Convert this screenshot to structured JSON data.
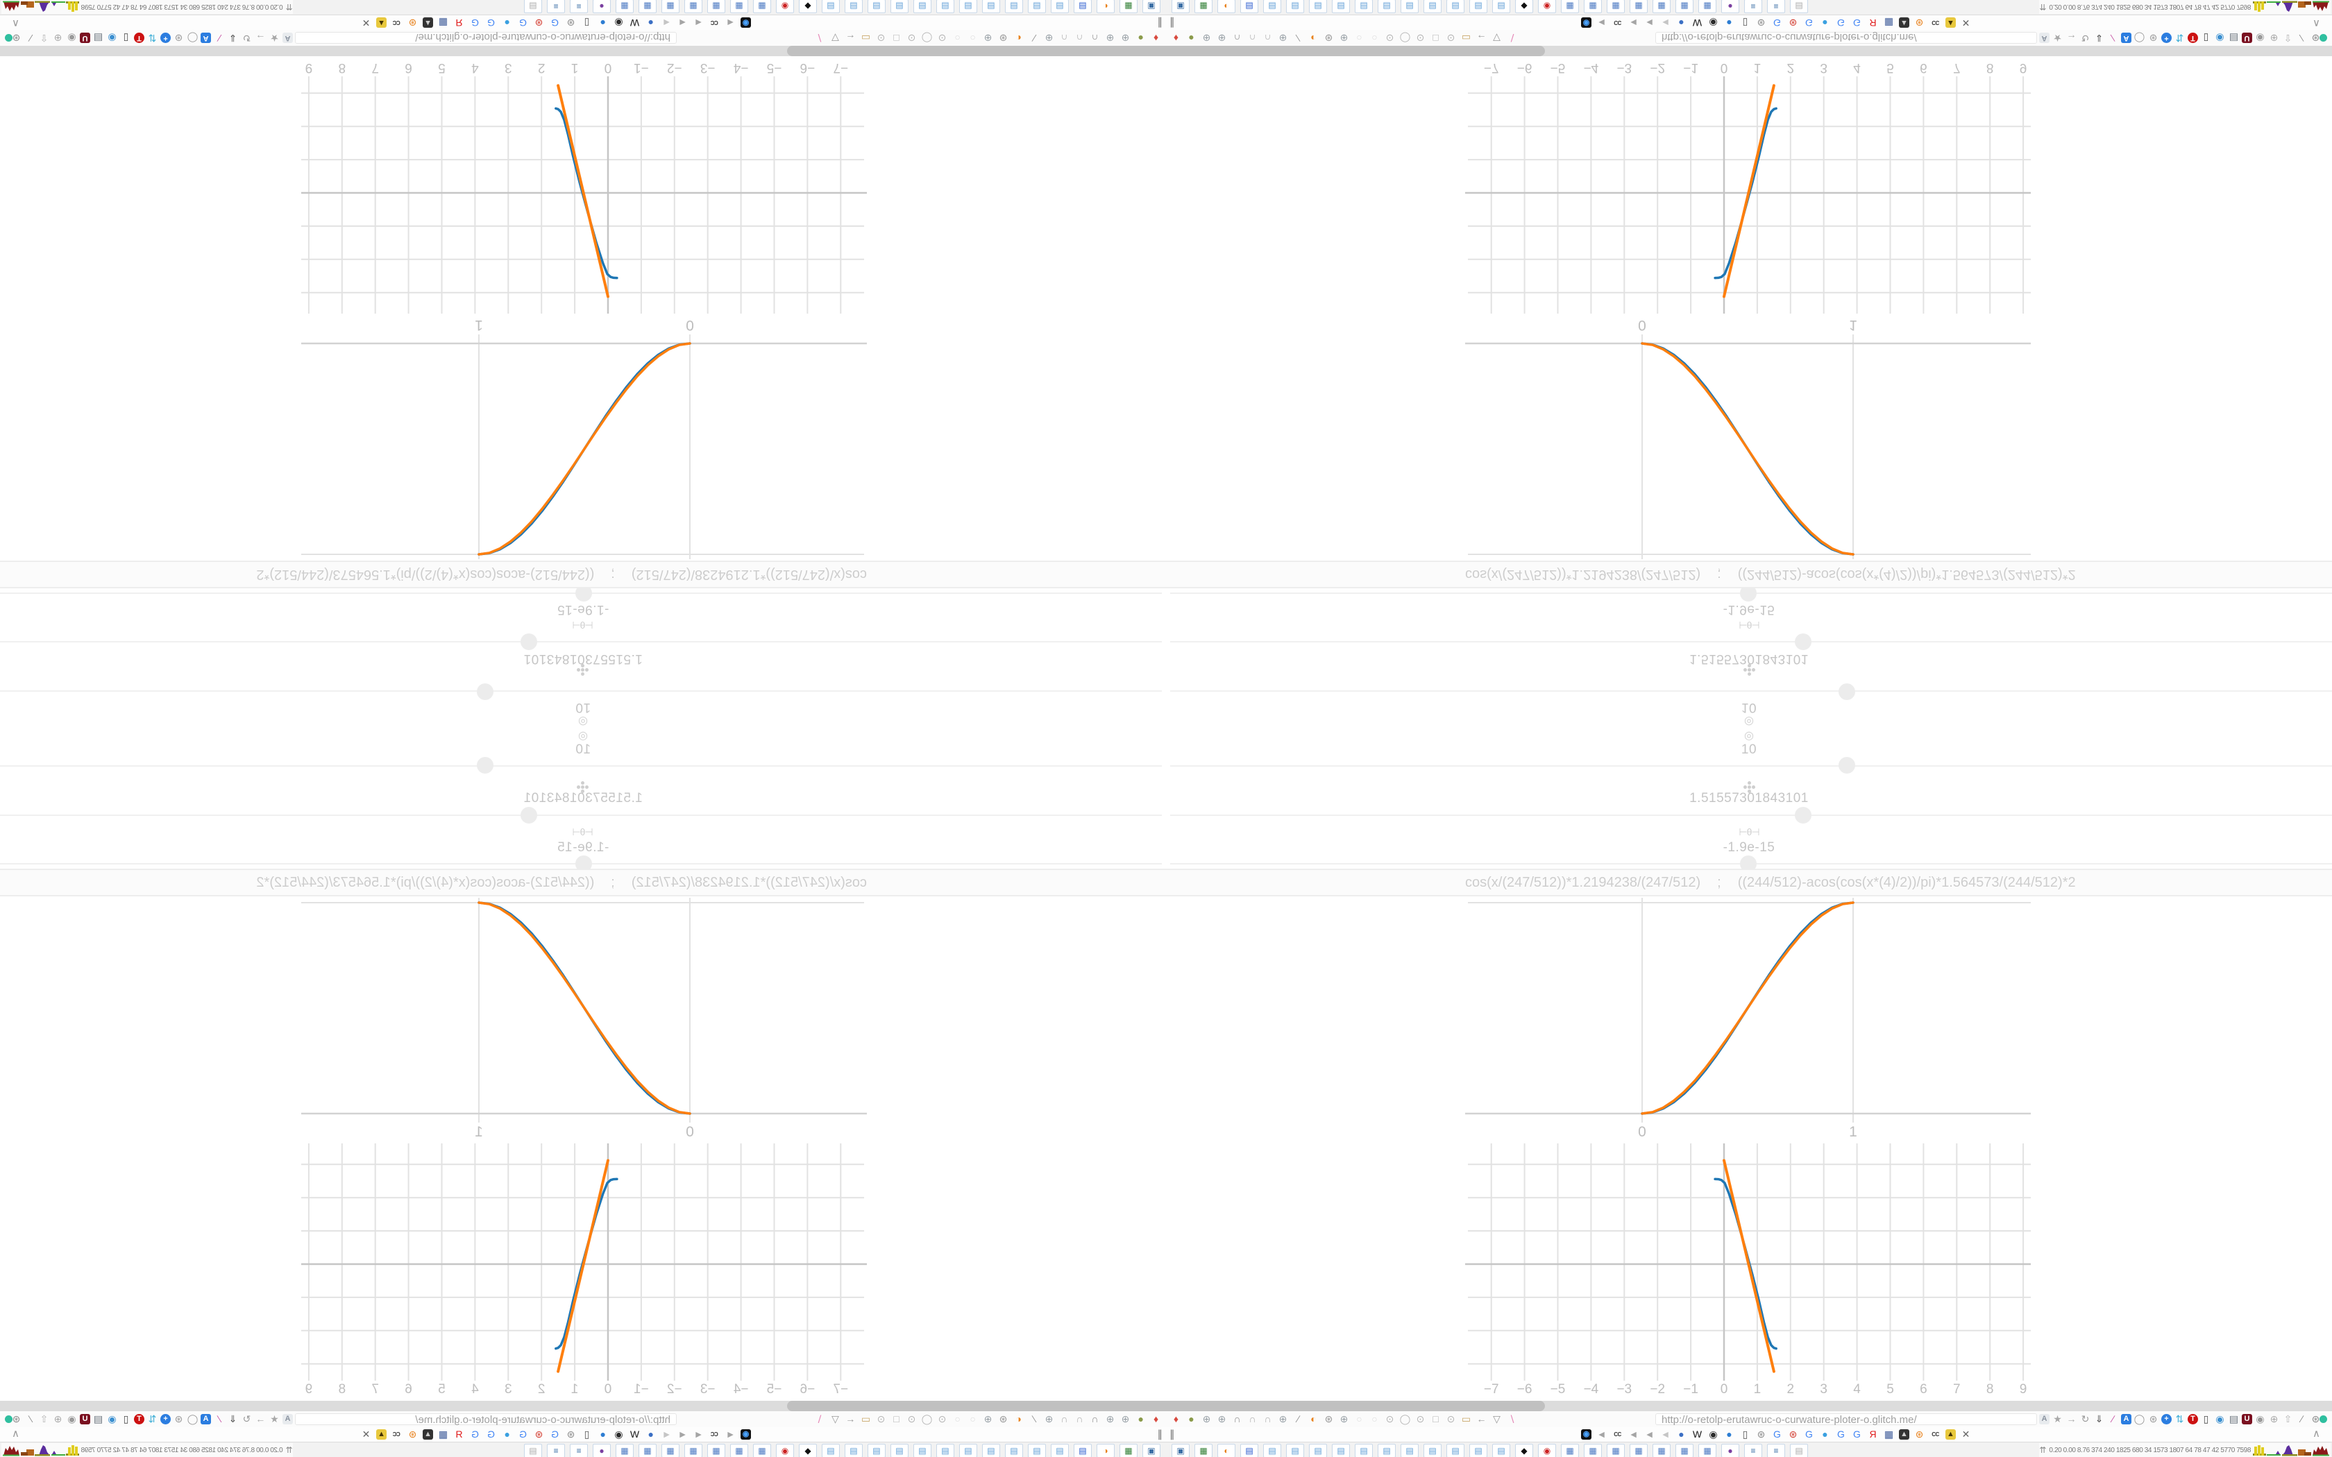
{
  "browser": {
    "url": "http://o-retolp-erutawruc-o-curwature-ploter-o.glitch.me/",
    "pause_glyph": "∥",
    "collapse_glyph": "∧",
    "status_dot_color": "#2fbf9f",
    "nav_icons": [
      {
        "name": "map-pin-icon",
        "glyph": "♦",
        "color": "#d84a3f"
      },
      {
        "name": "olive-circle-icon",
        "glyph": "●",
        "color": "#8a9a4a"
      },
      {
        "name": "globe-icon",
        "glyph": "⊕",
        "color": "#9aa2a8"
      },
      {
        "name": "globe-icon",
        "glyph": "⊕",
        "color": "#9aa2a8"
      },
      {
        "name": "headset-icon",
        "glyph": "∩",
        "color": "#8f8f8f"
      },
      {
        "name": "arc-icon",
        "glyph": "∩",
        "color": "#b0b0b0"
      },
      {
        "name": "arc-icon",
        "glyph": "∩",
        "color": "#b0b0b0"
      },
      {
        "name": "globe-icon",
        "glyph": "⊕",
        "color": "#9aa2a8"
      },
      {
        "name": "wrench-icon",
        "glyph": "∕",
        "color": "#8f8f8f"
      },
      {
        "name": "firefox-icon",
        "glyph": "◐",
        "color": "#e8821e"
      },
      {
        "name": "gear-icon",
        "glyph": "⊛",
        "color": "#979797"
      },
      {
        "name": "globe-icon",
        "glyph": "⊕",
        "color": "#9aa2a8"
      },
      {
        "name": "dot-icon",
        "glyph": "○",
        "color": "#dcdcdc"
      },
      {
        "name": "dot-icon",
        "glyph": "○",
        "color": "#dcdcdc"
      },
      {
        "name": "record-icon",
        "glyph": "⊙",
        "color": "#b5b5b5"
      },
      {
        "name": "circle-icon",
        "glyph": "◯",
        "color": "#b5b5b5"
      },
      {
        "name": "record-icon",
        "glyph": "⊙",
        "color": "#b5b5b5"
      },
      {
        "name": "square-icon",
        "glyph": "□",
        "color": "#b5b5b5"
      },
      {
        "name": "record-icon",
        "glyph": "⊙",
        "color": "#b5b5b5"
      },
      {
        "name": "folder-icon",
        "glyph": "▭",
        "color": "#c9a86a"
      },
      {
        "name": "back-arrow-icon",
        "glyph": "←",
        "color": "#9a9a9a"
      },
      {
        "name": "shield-icon",
        "glyph": "▽",
        "color": "#9a9a9a"
      },
      {
        "name": "edit-disabled-icon",
        "glyph": "∖",
        "color": "#e585b5"
      }
    ],
    "extension_icons": [
      {
        "name": "translate-box-icon",
        "glyph": "A",
        "color": "#8a93a0",
        "box": "#e8ebee"
      },
      {
        "name": "star-icon",
        "glyph": "★",
        "color": "#a8a8a8"
      },
      {
        "name": "forward-arrow-icon",
        "glyph": "→",
        "color": "#a8a8a8"
      },
      {
        "name": "reload-icon",
        "glyph": "↻",
        "color": "#9a9a9a"
      },
      {
        "name": "download-icon",
        "glyph": "⇓",
        "color": "#555555"
      },
      {
        "name": "marker-icon",
        "glyph": "∕",
        "color": "#c44fa0"
      },
      {
        "name": "translate-blue-icon",
        "glyph": "A",
        "color": "#ffffff",
        "box": "#2b7de0"
      },
      {
        "name": "mouse-icon",
        "glyph": "◯",
        "color": "#9a9a9a"
      },
      {
        "name": "gear-flower-icon",
        "glyph": "⊛",
        "color": "#9a9a9a"
      },
      {
        "name": "add-icon",
        "glyph": "+",
        "color": "#ffffff",
        "box": "#2b7de0",
        "round": true
      },
      {
        "name": "sync-icon",
        "glyph": "⇅",
        "color": "#45b1d8"
      },
      {
        "name": "tcp-icon",
        "glyph": "T",
        "color": "#ffffff",
        "box": "#cc1111",
        "round": true
      },
      {
        "name": "trash-icon",
        "glyph": "▯",
        "color": "#4a4a4a"
      },
      {
        "name": "globe-color-icon",
        "glyph": "◉",
        "color": "#3a8fd0"
      },
      {
        "name": "bars-box-icon",
        "glyph": "▤",
        "color": "#66707a"
      },
      {
        "name": "ud-shield-icon",
        "glyph": "U",
        "color": "#ffffff",
        "box": "#7a1020"
      },
      {
        "name": "swirl-shield-icon",
        "glyph": "◉",
        "color": "#9a9a9a"
      },
      {
        "name": "globe-grid-icon",
        "glyph": "⊕",
        "color": "#ababab"
      },
      {
        "name": "thumb-icon",
        "glyph": "⇧",
        "color": "#b5b5b5"
      },
      {
        "name": "wrench-icon",
        "glyph": "∕",
        "color": "#8a8a8a"
      },
      {
        "name": "gear-icon",
        "glyph": "⊛",
        "color": "#8a8a8a"
      }
    ],
    "favicons": [
      {
        "name": "vinyl-icon",
        "glyph": "◉",
        "color": "#4aa3ff",
        "box": "#111111"
      },
      {
        "name": "mute-icon",
        "glyph": "◄",
        "color": "#a5a5a5"
      },
      {
        "name": "cc-icon",
        "glyph": "CC",
        "color": "#333333",
        "small": true
      },
      {
        "name": "mute-icon",
        "glyph": "◄",
        "color": "#a5a5a5"
      },
      {
        "name": "mute-icon",
        "glyph": "◄",
        "color": "#a5a5a5"
      },
      {
        "name": "mute-icon",
        "glyph": "◄",
        "color": "#c5c5c5"
      },
      {
        "name": "ball-icon",
        "glyph": "●",
        "color": "#3b6fc4"
      },
      {
        "name": "wikipedia-icon",
        "glyph": "W",
        "color": "#1a1a1a"
      },
      {
        "name": "radar-icon",
        "glyph": "◉",
        "color": "#2a2a2a"
      },
      {
        "name": "blue-globe-icon",
        "glyph": "●",
        "color": "#2d7dd2"
      },
      {
        "name": "trash-icon",
        "glyph": "▯",
        "color": "#555555"
      },
      {
        "name": "gear-icon",
        "glyph": "⊛",
        "color": "#8a8a8a"
      },
      {
        "name": "google-icon",
        "glyph": "G",
        "color": "#4285f4"
      },
      {
        "name": "red-gear-icon",
        "glyph": "⊛",
        "color": "#d23b2f"
      },
      {
        "name": "google-icon",
        "glyph": "G",
        "color": "#4285f4"
      },
      {
        "name": "drop-icon",
        "glyph": "●",
        "color": "#3aa0e0"
      },
      {
        "name": "google-icon",
        "glyph": "G",
        "color": "#4285f4"
      },
      {
        "name": "google-icon",
        "glyph": "G",
        "color": "#4285f4"
      },
      {
        "name": "yandex-icon",
        "glyph": "Я",
        "color": "#e01b1b"
      },
      {
        "name": "grid-icon",
        "glyph": "▦",
        "color": "#3b5998"
      },
      {
        "name": "photo-icon",
        "glyph": "▲",
        "color": "#cccccc",
        "box": "#333333"
      },
      {
        "name": "sun-gear-icon",
        "glyph": "⊛",
        "color": "#e8821e"
      },
      {
        "name": "cc-icon",
        "glyph": "CC",
        "color": "#333333",
        "small": true
      },
      {
        "name": "photo-icon",
        "glyph": "▲",
        "color": "#443300",
        "box": "#e8c83d"
      },
      {
        "name": "hourglass-icon",
        "glyph": "✕",
        "color": "#666666"
      }
    ],
    "taskbar_buttons": [
      {
        "name": "pc-photo-window",
        "glyph": "▣",
        "color": "#3a6ea5"
      },
      {
        "name": "green-app-window",
        "glyph": "▦",
        "color": "#2e7d32"
      },
      {
        "name": "firefox-window",
        "glyph": "◐",
        "color": "#e8821e"
      },
      {
        "name": "floppy-window",
        "glyph": "▤",
        "color": "#2255cc"
      },
      {
        "name": "notepad-window",
        "glyph": "▤",
        "color": "#5b9bd5"
      },
      {
        "name": "notepad-window",
        "glyph": "▤",
        "color": "#5b9bd5"
      },
      {
        "name": "notepad-window",
        "glyph": "▤",
        "color": "#5b9bd5"
      },
      {
        "name": "notepad-window",
        "glyph": "▤",
        "color": "#5b9bd5"
      },
      {
        "name": "notepad-window",
        "glyph": "▤",
        "color": "#5b9bd5"
      },
      {
        "name": "notepad-window",
        "glyph": "▤",
        "color": "#5b9bd5"
      },
      {
        "name": "notepad-window",
        "glyph": "▤",
        "color": "#5b9bd5"
      },
      {
        "name": "notepad-window",
        "glyph": "▤",
        "color": "#5b9bd5"
      },
      {
        "name": "notepad-window",
        "glyph": "▤",
        "color": "#5b9bd5"
      },
      {
        "name": "notepad-window",
        "glyph": "▤",
        "color": "#5b9bd5"
      },
      {
        "name": "notepad-window",
        "glyph": "▤",
        "color": "#5b9bd5"
      },
      {
        "name": "cat-window",
        "glyph": "◆",
        "color": "#111111"
      },
      {
        "name": "dial-window",
        "glyph": "◉",
        "color": "#cc2222"
      },
      {
        "name": "calculator-window",
        "glyph": "▦",
        "color": "#4a78c2"
      },
      {
        "name": "calculator-window",
        "glyph": "▦",
        "color": "#4a78c2"
      },
      {
        "name": "calculator-window",
        "glyph": "▦",
        "color": "#4a78c2"
      },
      {
        "name": "calculator-window",
        "glyph": "▦",
        "color": "#4a78c2"
      },
      {
        "name": "calculator-window",
        "glyph": "▦",
        "color": "#4a78c2"
      },
      {
        "name": "calculator-window",
        "glyph": "▦",
        "color": "#4a78c2"
      },
      {
        "name": "calculator-window",
        "glyph": "▦",
        "color": "#4a78c2"
      },
      {
        "name": "monkey-window",
        "glyph": "●",
        "color": "#7a3fa0"
      },
      {
        "name": "scroll-window",
        "glyph": "≡",
        "color": "#3a6ea5"
      },
      {
        "name": "scroll-window",
        "glyph": "≡",
        "color": "#3a6ea5"
      },
      {
        "name": "printer-window",
        "glyph": "▤",
        "color": "#aaaaaa"
      }
    ],
    "monitor": {
      "expand_glyph": "⇈",
      "values": "0.20 0.00 8.76 374 240 1825 680 34 1573 1807 64 78 47 42 5770 7598"
    }
  },
  "page": {
    "stack": {
      "rows": [
        {
          "icon": "target-icon",
          "glyph": "◎",
          "value": "10",
          "thumb_x": 981,
          "thumb_y": 53
        },
        {
          "icon": "clover-icon",
          "glyph": "",
          "value": "1.51557301843101",
          "thumb_x": 918,
          "thumb_y": 125
        },
        {
          "icon": "theta-node-icon",
          "glyph": "⊢θ⊣",
          "value": "-1.9e-15",
          "thumb_x": 839,
          "thumb_y": 195
        }
      ]
    },
    "expressions": {
      "left": "cos(x/(247/512))*1.2194238/(247/512)",
      "separator": ";",
      "right": "((244/512)-acos(cos(x*(4)/2))/pi)*1.564573/(244/512)*2"
    }
  },
  "chart_data": [
    {
      "id": "sigmoid-plot",
      "type": "line",
      "title": "",
      "xlabel": "",
      "ylabel": "",
      "xlim": [
        -0.84,
        1.84
      ],
      "ylim": [
        -0.13,
        1.02
      ],
      "grid_x": [
        0,
        1
      ],
      "grid_y": [
        1
      ],
      "zero_y": 0,
      "x_ticks": [
        {
          "v": 0,
          "label": "0"
        },
        {
          "v": 1,
          "label": "1"
        }
      ],
      "legend": "none",
      "series": [
        {
          "name": "exact-curve",
          "color": "#1f77b4",
          "width": 3.5,
          "points": [
            [
              0,
              0
            ],
            [
              0.05,
              0.006
            ],
            [
              0.1,
              0.024
            ],
            [
              0.15,
              0.054
            ],
            [
              0.2,
              0.095
            ],
            [
              0.25,
              0.146
            ],
            [
              0.3,
              0.206
            ],
            [
              0.35,
              0.273
            ],
            [
              0.4,
              0.345
            ],
            [
              0.45,
              0.422
            ],
            [
              0.5,
              0.5
            ],
            [
              0.55,
              0.578
            ],
            [
              0.6,
              0.655
            ],
            [
              0.65,
              0.727
            ],
            [
              0.7,
              0.794
            ],
            [
              0.75,
              0.854
            ],
            [
              0.8,
              0.905
            ],
            [
              0.85,
              0.946
            ],
            [
              0.9,
              0.976
            ],
            [
              0.95,
              0.994
            ],
            [
              1,
              1
            ]
          ]
        },
        {
          "name": "approx-curve",
          "color": "#ff7f0e",
          "width": 3.5,
          "points": [
            [
              0,
              0
            ],
            [
              0.05,
              0.007
            ],
            [
              0.1,
              0.028
            ],
            [
              0.15,
              0.061
            ],
            [
              0.2,
              0.104
            ],
            [
              0.25,
              0.156
            ],
            [
              0.3,
              0.216
            ],
            [
              0.35,
              0.282
            ],
            [
              0.4,
              0.352
            ],
            [
              0.45,
              0.425
            ],
            [
              0.5,
              0.5
            ],
            [
              0.55,
              0.575
            ],
            [
              0.6,
              0.648
            ],
            [
              0.65,
              0.718
            ],
            [
              0.7,
              0.784
            ],
            [
              0.75,
              0.844
            ],
            [
              0.8,
              0.896
            ],
            [
              0.85,
              0.939
            ],
            [
              0.9,
              0.972
            ],
            [
              0.95,
              0.993
            ],
            [
              1,
              1
            ]
          ]
        }
      ]
    },
    {
      "id": "derivative-plot",
      "type": "line",
      "title": "",
      "xlabel": "",
      "ylabel": "",
      "xlim": [
        -7.79,
        9.23
      ],
      "ylim": [
        -3.96,
        3.63
      ],
      "grid_x": [
        -7,
        -6,
        -5,
        -4,
        -3,
        -2,
        -1,
        0,
        1,
        2,
        3,
        4,
        5,
        6,
        7,
        8,
        9
      ],
      "grid_y": [
        -3,
        -2,
        -1,
        0,
        1,
        2,
        3
      ],
      "zero_x": 0,
      "zero_y": 0,
      "x_ticks": [
        {
          "v": -7,
          "label": "−7"
        },
        {
          "v": -6,
          "label": "−6"
        },
        {
          "v": -5,
          "label": "−5"
        },
        {
          "v": -4,
          "label": "−4"
        },
        {
          "v": -3,
          "label": "−3"
        },
        {
          "v": -2,
          "label": "−2"
        },
        {
          "v": -1,
          "label": "−1"
        },
        {
          "v": 0,
          "label": "0"
        },
        {
          "v": 1,
          "label": "1"
        },
        {
          "v": 2,
          "label": "2"
        },
        {
          "v": 3,
          "label": "3"
        },
        {
          "v": 4,
          "label": "4"
        },
        {
          "v": 5,
          "label": "5"
        },
        {
          "v": 6,
          "label": "6"
        },
        {
          "v": 7,
          "label": "7"
        },
        {
          "v": 8,
          "label": "8"
        },
        {
          "v": 9,
          "label": "9"
        }
      ],
      "legend": "none",
      "series": [
        {
          "name": "exact-curve",
          "color": "#1f77b4",
          "width": 3.5,
          "points": [
            [
              -0.27,
              2.56
            ],
            [
              -0.17,
              2.555
            ],
            [
              -0.08,
              2.53
            ],
            [
              0.02,
              2.44
            ],
            [
              0.15,
              2.12
            ],
            [
              0.35,
              1.5
            ],
            [
              0.6,
              0.62
            ],
            [
              0.85,
              -0.3
            ],
            [
              1.05,
              -1.1
            ],
            [
              1.2,
              -1.75
            ],
            [
              1.32,
              -2.2
            ],
            [
              1.42,
              -2.44
            ],
            [
              1.5,
              -2.52
            ],
            [
              1.57,
              -2.54
            ]
          ]
        },
        {
          "name": "approx-line",
          "color": "#ff7f0e",
          "width": 4,
          "points": [
            [
              0,
              3.12
            ],
            [
              1.5,
              -3.23
            ]
          ]
        }
      ]
    }
  ],
  "colors": {
    "curve_blue": "#1f77b4",
    "curve_orange": "#ff7f0e",
    "grid": "#e2e2e2",
    "zeroline": "#c6c6c6",
    "axis_line": "#d2d2d2",
    "tick_label": "#bdbdbd",
    "stack_text": "#c5c5c5",
    "expr_text": "#cdcdcd",
    "divider": "#f0f0f0",
    "scroll_track": "#dcdcdc",
    "scroll_thumb": "#c0c0c0"
  }
}
